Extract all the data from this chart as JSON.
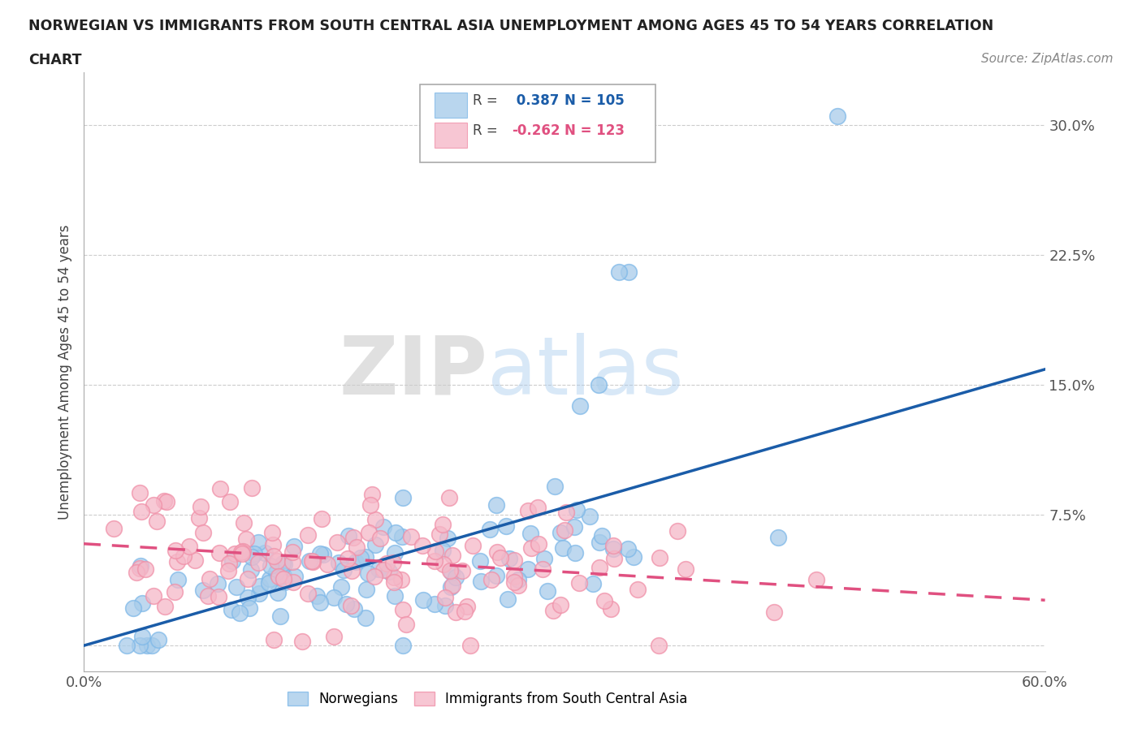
{
  "title_line1": "NORWEGIAN VS IMMIGRANTS FROM SOUTH CENTRAL ASIA UNEMPLOYMENT AMONG AGES 45 TO 54 YEARS CORRELATION",
  "title_line2": "CHART",
  "source": "Source: ZipAtlas.com",
  "ylabel": "Unemployment Among Ages 45 to 54 years",
  "xlim": [
    0.0,
    0.6
  ],
  "ylim": [
    -0.015,
    0.33
  ],
  "xticks": [
    0.0,
    0.1,
    0.2,
    0.3,
    0.4,
    0.5,
    0.6
  ],
  "xticklabels": [
    "0.0%",
    "",
    "",
    "",
    "",
    "",
    "60.0%"
  ],
  "yticks": [
    0.0,
    0.075,
    0.15,
    0.225,
    0.3
  ],
  "yticklabels": [
    "",
    "7.5%",
    "15.0%",
    "22.5%",
    "30.0%"
  ],
  "norwegian_R": 0.387,
  "norwegian_N": 105,
  "immigrant_R": -0.262,
  "immigrant_N": 123,
  "norwegian_color": "#A8CCEA",
  "norwegian_edge_color": "#7EB8E8",
  "immigrant_color": "#F5B8C8",
  "immigrant_edge_color": "#F090A8",
  "norwegian_line_color": "#1A5CA8",
  "immigrant_line_color": "#E05080",
  "watermark_zip": "ZIP",
  "watermark_atlas": "atlas",
  "legend_norwegian": "Norwegians",
  "legend_immigrant": "Immigrants from South Central Asia",
  "background_color": "#ffffff",
  "grid_color": "#cccccc"
}
